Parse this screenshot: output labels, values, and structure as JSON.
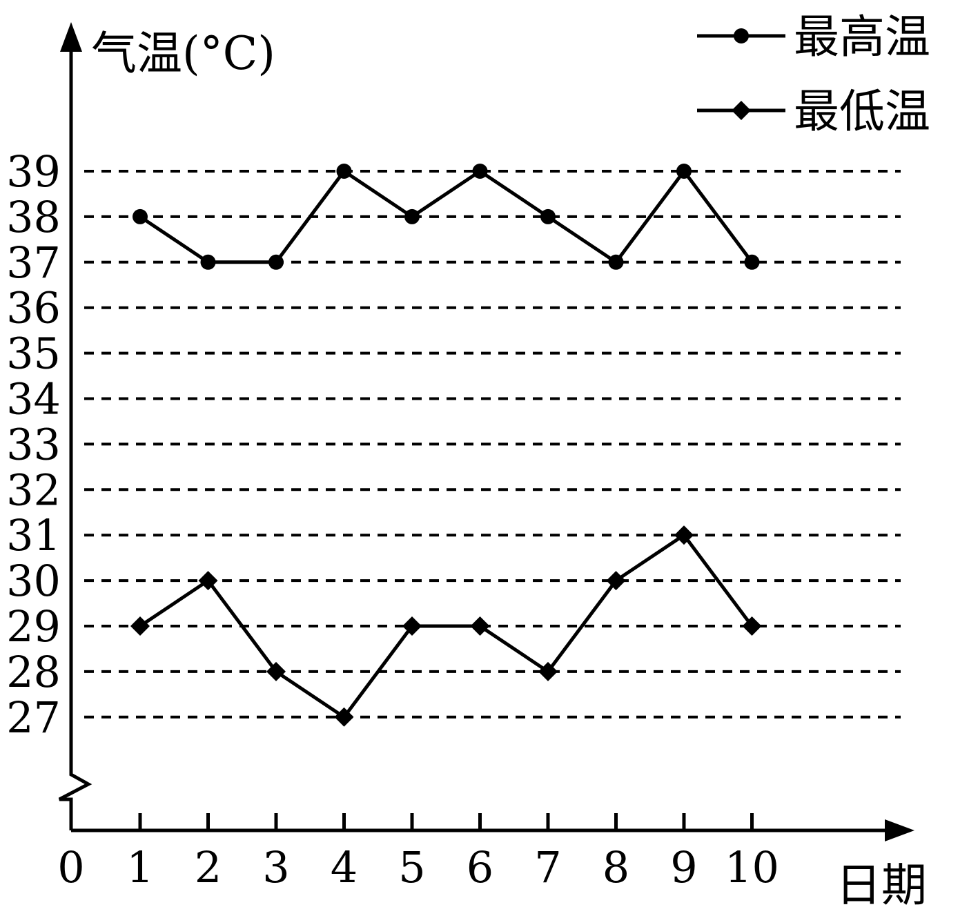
{
  "chart_data": {
    "type": "line",
    "ylabel": "气温(°C)",
    "xlabel": "日期",
    "origin_label": "0",
    "categories": [
      1,
      2,
      3,
      4,
      5,
      6,
      7,
      8,
      9,
      10
    ],
    "x_ticks": [
      "1",
      "2",
      "3",
      "4",
      "5",
      "6",
      "7",
      "8",
      "9",
      "10"
    ],
    "y_ticks": [
      "39",
      "38",
      "37",
      "36",
      "35",
      "34",
      "33",
      "32",
      "31",
      "30",
      "29",
      "28",
      "27"
    ],
    "ylim": [
      27,
      39
    ],
    "y_axis_break": true,
    "grid": "horizontal dashed",
    "legend_position": "top-right",
    "series": [
      {
        "name": "最高温",
        "marker": "circle",
        "values": [
          38,
          37,
          37,
          39,
          38,
          39,
          38,
          37,
          39,
          37
        ]
      },
      {
        "name": "最低温",
        "marker": "diamond",
        "values": [
          29,
          30,
          28,
          27,
          29,
          29,
          28,
          30,
          31,
          29
        ]
      }
    ],
    "colors": {
      "line": "#000000",
      "background": "#ffffff"
    }
  }
}
